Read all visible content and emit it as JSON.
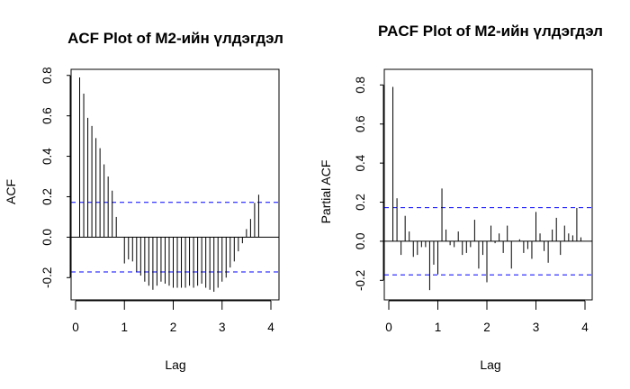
{
  "conf_color": "#0000ff",
  "bar_color": "#000000",
  "chart_data": [
    {
      "type": "bar",
      "title": "ACF Plot of M2-ийн үлдэгдэл",
      "xlabel": "Lag",
      "ylabel": "ACF",
      "xlim": [
        0,
        4.1
      ],
      "ylim": [
        -0.31,
        0.83
      ],
      "xticks": [
        0,
        1,
        2,
        3,
        4
      ],
      "yticks": [
        -0.2,
        0.0,
        0.2,
        0.4,
        0.6,
        0.8
      ],
      "conf_limits": [
        0.172,
        -0.172
      ],
      "lag_step": 0.08333,
      "values": [
        0.79,
        0.71,
        0.59,
        0.55,
        0.49,
        0.44,
        0.36,
        0.3,
        0.23,
        0.1,
        0.0,
        -0.13,
        -0.11,
        -0.12,
        -0.17,
        -0.19,
        -0.22,
        -0.24,
        -0.26,
        -0.24,
        -0.22,
        -0.23,
        -0.24,
        -0.25,
        -0.25,
        -0.25,
        -0.25,
        -0.24,
        -0.25,
        -0.24,
        -0.23,
        -0.25,
        -0.26,
        -0.27,
        -0.25,
        -0.22,
        -0.2,
        -0.15,
        -0.12,
        -0.07,
        -0.03,
        0.04,
        0.09,
        0.17,
        0.21
      ]
    },
    {
      "type": "bar",
      "title": "PACF Plot of M2-ийн үлдэгдэл",
      "xlabel": "Lag",
      "ylabel": "Partial ACF",
      "xlim": [
        0,
        4.1
      ],
      "ylim": [
        -0.3,
        0.88
      ],
      "xticks": [
        0,
        1,
        2,
        3,
        4
      ],
      "yticks": [
        -0.2,
        0.0,
        0.2,
        0.4,
        0.6,
        0.8
      ],
      "conf_limits": [
        0.172,
        -0.172
      ],
      "lag_step": 0.08333,
      "values": [
        0.79,
        0.22,
        -0.07,
        0.13,
        0.05,
        -0.08,
        -0.07,
        -0.03,
        -0.03,
        -0.25,
        -0.12,
        -0.17,
        0.27,
        0.06,
        -0.02,
        -0.03,
        0.05,
        -0.07,
        -0.06,
        -0.03,
        0.11,
        -0.14,
        -0.07,
        -0.21,
        0.08,
        -0.01,
        0.04,
        -0.06,
        0.08,
        -0.14,
        0.0,
        0.01,
        -0.06,
        -0.04,
        -0.09,
        0.15,
        0.04,
        -0.05,
        -0.11,
        0.06,
        0.12,
        -0.07,
        0.08,
        0.04,
        0.03,
        0.17,
        0.02
      ]
    }
  ]
}
